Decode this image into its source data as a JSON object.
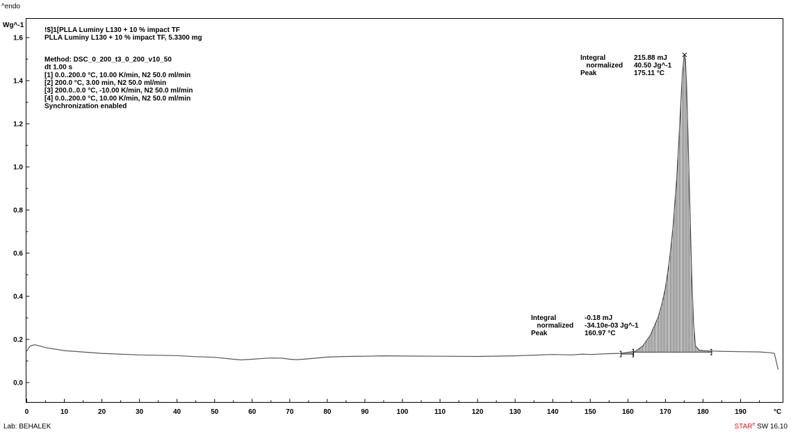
{
  "chart_data": {
    "type": "line",
    "title": "",
    "endo_label": "^endo",
    "ylabel": "Wg^-1",
    "xlabel": "°C",
    "xlim": [
      0,
      200
    ],
    "ylim": [
      -0.05,
      1.65
    ],
    "x_ticks": [
      0,
      10,
      20,
      30,
      40,
      50,
      60,
      70,
      80,
      90,
      100,
      110,
      120,
      130,
      140,
      150,
      160,
      170,
      180,
      190
    ],
    "y_ticks": [
      "0.0",
      "0.2",
      "0.4",
      "0.6",
      "0.8",
      "1.0",
      "1.2",
      "1.4",
      "1.6"
    ],
    "y_tick_values": [
      0.0,
      0.2,
      0.4,
      0.6,
      0.8,
      1.0,
      1.2,
      1.4,
      1.6
    ],
    "grid": false,
    "header_lines": [
      "!$]1[PLLA Luminy L130 + 10 % impact TF",
      "PLLA Luminy L130 + 10 % impact TF, 5.3300 mg",
      "",
      "Method: DSC_0_200_t3_0_200_v10_50",
      "dt 1.00 s",
      "[1] 0.0..200.0 °C, 10.00 K/min, N2 50.0 ml/min",
      "[2] 200.0 °C, 3.00 min, N2 50.0 ml/min",
      "[3] 200.0..0.0 °C, -10.00 K/min, N2 50.0 ml/min",
      "[4] 0.0..200.0 °C, 10.00 K/min, N2 50.0 ml/min",
      "Synchronization enabled"
    ],
    "annotations": [
      {
        "labels": [
          "Integral",
          "  normalized",
          "Peak"
        ],
        "values": [
          "215.88 mJ",
          "40.50 Jg^-1",
          "175.11 °C"
        ]
      },
      {
        "labels": [
          "Integral",
          "  normalized",
          "Peak"
        ],
        "values": [
          "-0.18 mJ",
          "-34.10e-03 Jg^-1",
          "160.97 °C"
        ]
      }
    ],
    "series": [
      {
        "x": [
          0,
          0.5,
          1,
          2,
          3,
          5,
          10,
          20,
          30,
          40,
          45,
          50,
          55,
          57,
          60,
          63,
          65,
          68,
          70,
          72,
          75,
          80,
          85,
          90,
          95,
          100,
          110,
          120,
          130,
          140,
          145,
          148,
          150,
          155,
          158,
          160,
          162,
          164,
          166,
          168,
          169,
          170,
          171,
          172,
          173,
          173.5,
          174,
          174.5,
          175,
          175.3,
          175.6,
          176,
          176.5,
          177,
          177.5,
          178,
          179,
          180,
          182,
          185,
          190,
          195,
          198,
          199,
          200
        ],
        "y": [
          0.145,
          0.16,
          0.17,
          0.175,
          0.172,
          0.162,
          0.148,
          0.135,
          0.128,
          0.125,
          0.12,
          0.117,
          0.108,
          0.105,
          0.108,
          0.112,
          0.114,
          0.113,
          0.108,
          0.106,
          0.11,
          0.118,
          0.121,
          0.122,
          0.124,
          0.123,
          0.122,
          0.121,
          0.124,
          0.13,
          0.128,
          0.132,
          0.13,
          0.134,
          0.135,
          0.14,
          0.145,
          0.17,
          0.22,
          0.3,
          0.36,
          0.44,
          0.56,
          0.72,
          0.95,
          1.1,
          1.27,
          1.43,
          1.52,
          1.5,
          1.4,
          1.15,
          0.82,
          0.5,
          0.27,
          0.17,
          0.15,
          0.148,
          0.146,
          0.145,
          0.143,
          0.142,
          0.138,
          0.135,
          0.06
        ]
      }
    ],
    "integral_regions": [
      {
        "x_start": 161.5,
        "x_end": 182.3,
        "baseline_y": 0.141,
        "markers": [
          161.5,
          182.3
        ]
      },
      {
        "x_start": 158.2,
        "x_end": 161.5,
        "baseline_y": 0.132,
        "markers": [
          158.2,
          161.5
        ]
      }
    ],
    "peak_marker": {
      "x": 175.1,
      "y": 1.52
    }
  },
  "footer": {
    "lab": "Lab: BEHALEK",
    "software_prefix": "STAR",
    "software_sup": "e",
    "software_suffix": " SW 16.10"
  }
}
